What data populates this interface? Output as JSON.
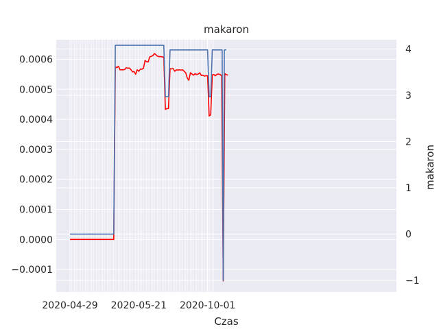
{
  "chart_data": {
    "type": "line",
    "title": "makaron",
    "xlabel": "Czas",
    "ylabel": "",
    "y2label": "makaron",
    "x_tick_labels": [
      "2020-04-29",
      "2020-05-21",
      "2020-10-01"
    ],
    "x_tick_index": [
      0,
      44,
      88
    ],
    "x_count": 93,
    "ylim": [
      -0.000175,
      0.000665
    ],
    "y_ticks": [
      -0.0001,
      0.0,
      0.0001,
      0.0002,
      0.0003,
      0.0004,
      0.0005,
      0.0006
    ],
    "y_tick_labels": [
      "−0.0001",
      "0.0000",
      "0.0001",
      "0.0002",
      "0.0003",
      "0.0004",
      "0.0005",
      "0.0006"
    ],
    "y2lim": [
      -1.25,
      4.2
    ],
    "y2_ticks": [
      -1,
      0,
      1,
      2,
      3,
      4
    ],
    "y2_tick_labels": [
      "−1",
      "0",
      "1",
      "2",
      "3",
      "4"
    ],
    "grid": true,
    "series": [
      {
        "name": "",
        "axis": "left",
        "color": "#ff0000",
        "points": [
          [
            0,
            0.0
          ],
          [
            28,
            0.0
          ],
          [
            29,
            0.000575
          ],
          [
            30,
            0.000572
          ],
          [
            31,
            0.000577
          ],
          [
            32,
            0.000565
          ],
          [
            33,
            0.000565
          ],
          [
            34,
            0.000565
          ],
          [
            35,
            0.000566
          ],
          [
            36,
            0.000572
          ],
          [
            37,
            0.00057
          ],
          [
            38,
            0.000571
          ],
          [
            39,
            0.000565
          ],
          [
            40,
            0.000558
          ],
          [
            41,
            0.000559
          ],
          [
            42,
            0.00055
          ],
          [
            43,
            0.000565
          ],
          [
            44,
            0.00056
          ],
          [
            45,
            0.000567
          ],
          [
            46,
            0.000567
          ],
          [
            47,
            0.00057
          ],
          [
            48,
            0.000596
          ],
          [
            49,
            0.000592
          ],
          [
            50,
            0.000591
          ],
          [
            51,
            0.000608
          ],
          [
            52,
            0.00061
          ],
          [
            53,
            0.000612
          ],
          [
            54,
            0.000619
          ],
          [
            55,
            0.000615
          ],
          [
            56,
            0.00061
          ],
          [
            57,
            0.000609
          ],
          [
            58,
            0.000609
          ],
          [
            59,
            0.000608
          ],
          [
            60,
            0.000607
          ],
          [
            61,
            0.000433
          ],
          [
            62,
            0.000436
          ],
          [
            63,
            0.000436
          ],
          [
            64,
            0.000569
          ],
          [
            65,
            0.000568
          ],
          [
            66,
            0.000569
          ],
          [
            67,
            0.00056
          ],
          [
            68,
            0.000565
          ],
          [
            69,
            0.000564
          ],
          [
            70,
            0.000565
          ],
          [
            71,
            0.000564
          ],
          [
            72,
            0.000565
          ],
          [
            73,
            0.00056
          ],
          [
            74,
            0.000555
          ],
          [
            75,
            0.000538
          ],
          [
            76,
            0.00053
          ],
          [
            77,
            0.000555
          ],
          [
            78,
            0.000551
          ],
          [
            79,
            0.000547
          ],
          [
            80,
            0.000552
          ],
          [
            81,
            0.000549
          ],
          [
            82,
            0.000551
          ],
          [
            83,
            0.000555
          ],
          [
            84,
            0.000546
          ],
          [
            85,
            0.000547
          ],
          [
            86,
            0.000544
          ],
          [
            87,
            0.000545
          ],
          [
            88,
            0.000545
          ],
          [
            89,
            0.000411
          ],
          [
            90,
            0.000415
          ],
          [
            91,
            0.000548
          ],
          [
            92,
            0.000549
          ],
          [
            93,
            0.000545
          ],
          [
            94,
            0.00055
          ],
          [
            95,
            0.000551
          ],
          [
            96,
            0.000549
          ],
          [
            97,
            0.000545
          ],
          [
            98,
            -0.000138
          ],
          [
            99,
            0.000552
          ],
          [
            100,
            0.000549
          ],
          [
            101,
            0.000547
          ]
        ]
      },
      {
        "name": "",
        "axis": "right",
        "color": "#4c72b0",
        "points": [
          [
            0,
            0.0
          ],
          [
            28,
            0.0
          ],
          [
            29,
            4.08
          ],
          [
            60,
            4.08
          ],
          [
            61,
            2.97
          ],
          [
            63,
            2.97
          ],
          [
            64,
            3.98
          ],
          [
            88,
            3.98
          ],
          [
            89,
            2.97
          ],
          [
            90,
            2.97
          ],
          [
            91,
            3.98
          ],
          [
            96,
            3.98
          ],
          [
            97.3,
            3.98
          ],
          [
            98,
            -1.0
          ],
          [
            98.7,
            3.98
          ],
          [
            99,
            3.98
          ],
          [
            100,
            3.98
          ]
        ]
      }
    ]
  }
}
